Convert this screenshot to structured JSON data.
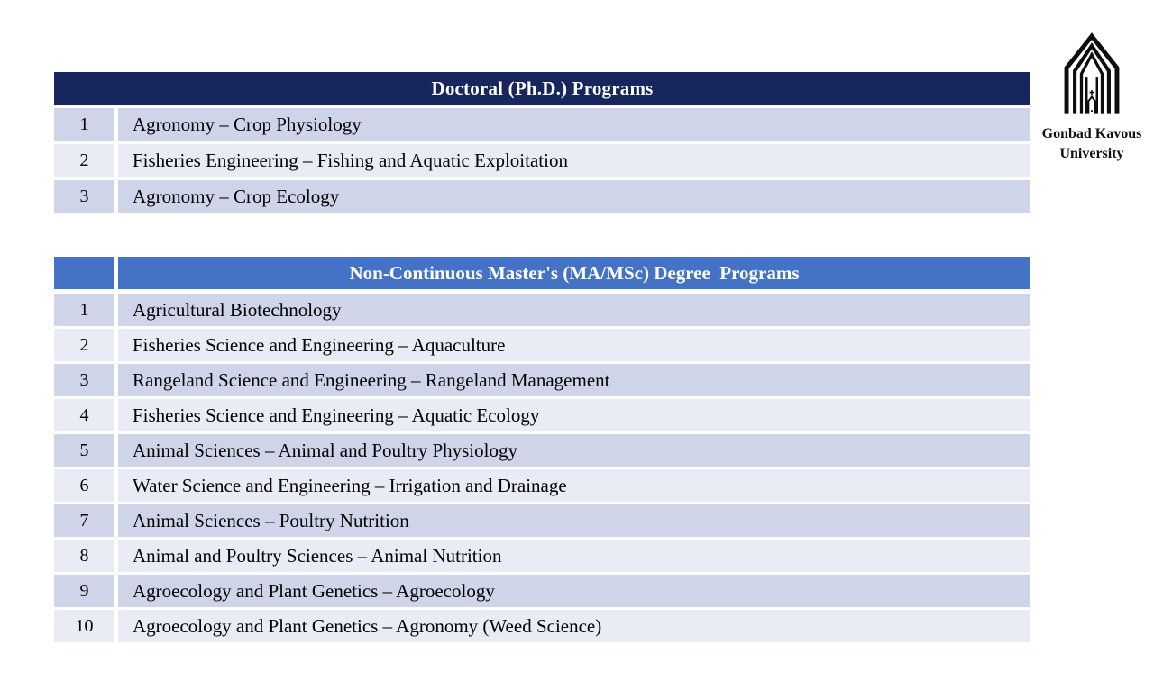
{
  "colors": {
    "navy": "#17265C",
    "blue": "#4472C4",
    "band_dark": "#CFD4E9",
    "band_light": "#E9EBF5"
  },
  "logo": {
    "line1": "Gonbad Kavous",
    "line2": "University"
  },
  "tables": [
    {
      "title": "Doctoral (Ph.D.) Programs",
      "rows": [
        {
          "num": "1",
          "program": "Agronomy – Crop Physiology"
        },
        {
          "num": "2",
          "program": "Fisheries Engineering – Fishing and Aquatic Exploitation"
        },
        {
          "num": "3",
          "program": "Agronomy – Crop Ecology"
        }
      ]
    },
    {
      "title": "Non-Continuous Master's (MA/MSc) Degree  Programs",
      "rows": [
        {
          "num": "1",
          "program": "Agricultural Biotechnology"
        },
        {
          "num": "2",
          "program": "Fisheries Science and Engineering – Aquaculture"
        },
        {
          "num": "3",
          "program": "Rangeland Science and Engineering – Rangeland Management"
        },
        {
          "num": "4",
          "program": "Fisheries Science and Engineering – Aquatic Ecology"
        },
        {
          "num": "5",
          "program": "Animal Sciences – Animal and Poultry Physiology"
        },
        {
          "num": "6",
          "program": "Water Science and Engineering – Irrigation and Drainage"
        },
        {
          "num": "7",
          "program": "Animal Sciences – Poultry Nutrition"
        },
        {
          "num": "8",
          "program": "Animal and Poultry Sciences – Animal Nutrition"
        },
        {
          "num": "9",
          "program": "Agroecology and Plant Genetics – Agroecology"
        },
        {
          "num": "10",
          "program": "Agroecology and Plant Genetics – Agronomy (Weed Science)"
        }
      ]
    }
  ]
}
